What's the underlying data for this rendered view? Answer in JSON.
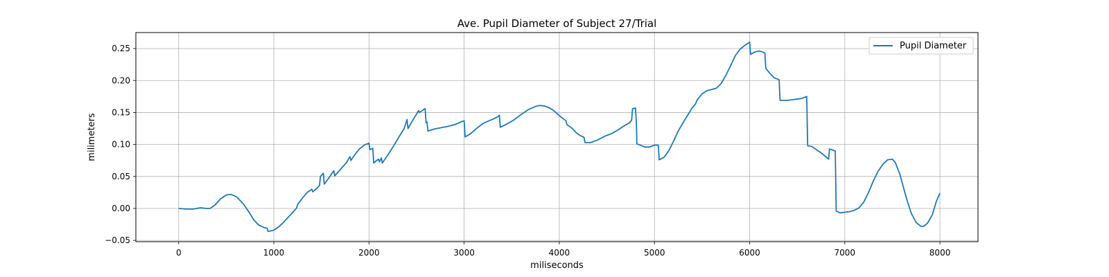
{
  "chart_data": {
    "type": "line",
    "title": "Ave. Pupil Diameter of Subject 27/Trial",
    "xlabel": "miliseconds",
    "ylabel": "milimeters",
    "xlim": [
      -450,
      8400
    ],
    "ylim": [
      -0.052,
      0.275
    ],
    "x_ticks": [
      0,
      1000,
      2000,
      3000,
      4000,
      5000,
      6000,
      7000,
      8000
    ],
    "y_ticks": [
      -0.05,
      0.0,
      0.05,
      0.1,
      0.15,
      0.2,
      0.25
    ],
    "y_tick_labels": [
      "−0.05",
      "0.00",
      "0.05",
      "0.10",
      "0.15",
      "0.20",
      "0.25"
    ],
    "grid": true,
    "legend_position": "top-right",
    "line_color": "#1f77b4",
    "series": [
      {
        "name": "Pupil Diameter",
        "points": [
          [
            0,
            0.0
          ],
          [
            80,
            -0.001
          ],
          [
            150,
            -0.001
          ],
          [
            230,
            0.001
          ],
          [
            290,
            0.0
          ],
          [
            330,
            0.0
          ],
          [
            380,
            0.005
          ],
          [
            440,
            0.015
          ],
          [
            500,
            0.021
          ],
          [
            550,
            0.022
          ],
          [
            610,
            0.018
          ],
          [
            680,
            0.007
          ],
          [
            740,
            -0.006
          ],
          [
            790,
            -0.018
          ],
          [
            840,
            -0.026
          ],
          [
            900,
            -0.03
          ],
          [
            930,
            -0.031
          ],
          [
            940,
            -0.036
          ],
          [
            1000,
            -0.034
          ],
          [
            1050,
            -0.029
          ],
          [
            1100,
            -0.022
          ],
          [
            1150,
            -0.014
          ],
          [
            1200,
            -0.006
          ],
          [
            1240,
            0.001
          ],
          [
            1250,
            0.006
          ],
          [
            1300,
            0.016
          ],
          [
            1350,
            0.025
          ],
          [
            1400,
            0.03
          ],
          [
            1410,
            0.026
          ],
          [
            1450,
            0.031
          ],
          [
            1480,
            0.036
          ],
          [
            1490,
            0.05
          ],
          [
            1520,
            0.055
          ],
          [
            1530,
            0.038
          ],
          [
            1580,
            0.048
          ],
          [
            1630,
            0.059
          ],
          [
            1640,
            0.051
          ],
          [
            1700,
            0.061
          ],
          [
            1760,
            0.071
          ],
          [
            1800,
            0.081
          ],
          [
            1810,
            0.075
          ],
          [
            1850,
            0.084
          ],
          [
            1900,
            0.093
          ],
          [
            1950,
            0.099
          ],
          [
            2000,
            0.102
          ],
          [
            2010,
            0.092
          ],
          [
            2040,
            0.094
          ],
          [
            2050,
            0.071
          ],
          [
            2080,
            0.075
          ],
          [
            2100,
            0.077
          ],
          [
            2110,
            0.073
          ],
          [
            2130,
            0.079
          ],
          [
            2140,
            0.071
          ],
          [
            2200,
            0.084
          ],
          [
            2260,
            0.098
          ],
          [
            2320,
            0.113
          ],
          [
            2370,
            0.125
          ],
          [
            2400,
            0.139
          ],
          [
            2410,
            0.125
          ],
          [
            2460,
            0.138
          ],
          [
            2510,
            0.15
          ],
          [
            2520,
            0.153
          ],
          [
            2530,
            0.15
          ],
          [
            2590,
            0.156
          ],
          [
            2600,
            0.134
          ],
          [
            2610,
            0.135
          ],
          [
            2620,
            0.121
          ],
          [
            2680,
            0.124
          ],
          [
            2750,
            0.126
          ],
          [
            2820,
            0.128
          ],
          [
            2900,
            0.131
          ],
          [
            2980,
            0.136
          ],
          [
            3000,
            0.137
          ],
          [
            3010,
            0.112
          ],
          [
            3060,
            0.116
          ],
          [
            3130,
            0.125
          ],
          [
            3200,
            0.133
          ],
          [
            3260,
            0.137
          ],
          [
            3310,
            0.14
          ],
          [
            3360,
            0.144
          ],
          [
            3370,
            0.146
          ],
          [
            3380,
            0.127
          ],
          [
            3450,
            0.132
          ],
          [
            3520,
            0.138
          ],
          [
            3600,
            0.147
          ],
          [
            3680,
            0.155
          ],
          [
            3760,
            0.16
          ],
          [
            3800,
            0.161
          ],
          [
            3850,
            0.16
          ],
          [
            3900,
            0.157
          ],
          [
            3950,
            0.152
          ],
          [
            4000,
            0.145
          ],
          [
            4070,
            0.137
          ],
          [
            4080,
            0.131
          ],
          [
            4120,
            0.127
          ],
          [
            4150,
            0.123
          ],
          [
            4180,
            0.118
          ],
          [
            4220,
            0.114
          ],
          [
            4260,
            0.111
          ],
          [
            4270,
            0.103
          ],
          [
            4330,
            0.103
          ],
          [
            4400,
            0.107
          ],
          [
            4480,
            0.113
          ],
          [
            4550,
            0.117
          ],
          [
            4620,
            0.123
          ],
          [
            4680,
            0.129
          ],
          [
            4740,
            0.134
          ],
          [
            4760,
            0.138
          ],
          [
            4770,
            0.156
          ],
          [
            4800,
            0.157
          ],
          [
            4810,
            0.134
          ],
          [
            4815,
            0.101
          ],
          [
            4850,
            0.099
          ],
          [
            4900,
            0.096
          ],
          [
            4950,
            0.096
          ],
          [
            5000,
            0.099
          ],
          [
            5040,
            0.099
          ],
          [
            5050,
            0.076
          ],
          [
            5100,
            0.08
          ],
          [
            5150,
            0.09
          ],
          [
            5200,
            0.105
          ],
          [
            5250,
            0.121
          ],
          [
            5300,
            0.134
          ],
          [
            5350,
            0.146
          ],
          [
            5400,
            0.158
          ],
          [
            5430,
            0.163
          ],
          [
            5450,
            0.17
          ],
          [
            5500,
            0.179
          ],
          [
            5550,
            0.184
          ],
          [
            5600,
            0.186
          ],
          [
            5650,
            0.188
          ],
          [
            5700,
            0.195
          ],
          [
            5750,
            0.208
          ],
          [
            5800,
            0.223
          ],
          [
            5850,
            0.239
          ],
          [
            5900,
            0.249
          ],
          [
            5950,
            0.255
          ],
          [
            6000,
            0.26
          ],
          [
            6010,
            0.241
          ],
          [
            6060,
            0.245
          ],
          [
            6100,
            0.246
          ],
          [
            6130,
            0.245
          ],
          [
            6160,
            0.243
          ],
          [
            6170,
            0.219
          ],
          [
            6220,
            0.21
          ],
          [
            6260,
            0.204
          ],
          [
            6300,
            0.202
          ],
          [
            6310,
            0.201
          ],
          [
            6320,
            0.169
          ],
          [
            6400,
            0.169
          ],
          [
            6450,
            0.17
          ],
          [
            6500,
            0.171
          ],
          [
            6550,
            0.172
          ],
          [
            6600,
            0.175
          ],
          [
            6610,
            0.098
          ],
          [
            6650,
            0.097
          ],
          [
            6700,
            0.092
          ],
          [
            6750,
            0.087
          ],
          [
            6800,
            0.081
          ],
          [
            6830,
            0.077
          ],
          [
            6840,
            0.093
          ],
          [
            6900,
            0.09
          ],
          [
            6910,
            -0.004
          ],
          [
            6950,
            -0.007
          ],
          [
            7000,
            -0.006
          ],
          [
            7050,
            -0.005
          ],
          [
            7100,
            -0.003
          ],
          [
            7150,
            0.001
          ],
          [
            7200,
            0.01
          ],
          [
            7250,
            0.025
          ],
          [
            7300,
            0.043
          ],
          [
            7350,
            0.058
          ],
          [
            7400,
            0.069
          ],
          [
            7450,
            0.076
          ],
          [
            7500,
            0.077
          ],
          [
            7530,
            0.072
          ],
          [
            7580,
            0.053
          ],
          [
            7620,
            0.031
          ],
          [
            7660,
            0.01
          ],
          [
            7700,
            -0.008
          ],
          [
            7750,
            -0.022
          ],
          [
            7800,
            -0.028
          ],
          [
            7830,
            -0.028
          ],
          [
            7870,
            -0.023
          ],
          [
            7920,
            -0.01
          ],
          [
            7960,
            0.01
          ],
          [
            8000,
            0.024
          ]
        ]
      }
    ]
  }
}
